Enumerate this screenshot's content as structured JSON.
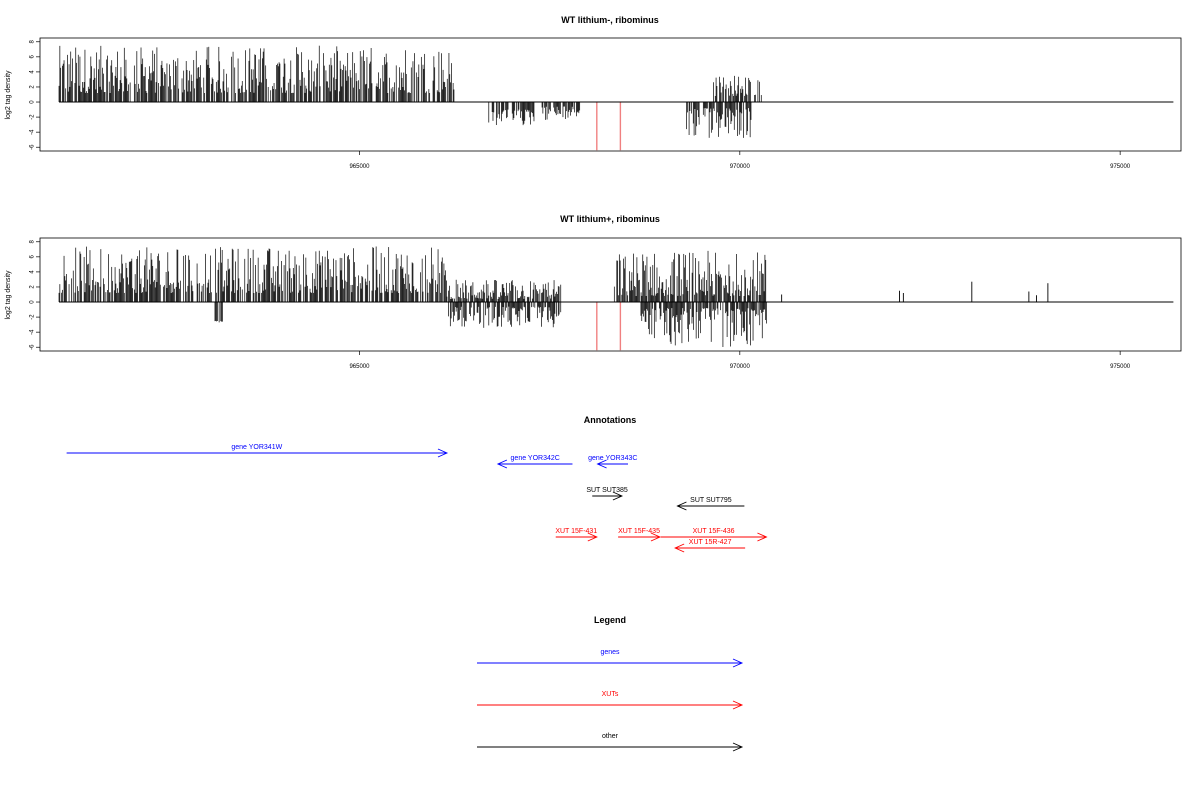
{
  "colors": {
    "gene": "#0000ff",
    "xut": "#ff0000",
    "other": "#000000",
    "track": "#000000",
    "marker": "#f08080"
  },
  "chart_data": [
    {
      "type": "bar",
      "title": "WT lithium-, ribominus",
      "ylabel": "log2 tag density",
      "xlim": [
        960800,
        975800
      ],
      "ylim": [
        -6.5,
        8.5
      ],
      "yticks": [
        8,
        6,
        4,
        2,
        0,
        -2,
        -4,
        -6
      ],
      "xticks": [
        965000,
        970000,
        975000
      ],
      "regions": [
        {
          "from": 961050,
          "to": 966250,
          "sign": 1,
          "min": 1.2,
          "max": 7.5
        },
        {
          "from": 966700,
          "to": 967300,
          "sign": -1,
          "min": 1.0,
          "max": 3.2
        },
        {
          "from": 967400,
          "to": 967900,
          "sign": -1,
          "min": 0.6,
          "max": 2.5
        },
        {
          "from": 969300,
          "to": 970150,
          "sign": -1,
          "min": 0.8,
          "max": 5.0
        },
        {
          "from": 969600,
          "to": 970300,
          "sign": 1,
          "min": 0.8,
          "max": 3.6
        }
      ],
      "markers": [
        968120,
        968430
      ]
    },
    {
      "type": "bar",
      "title": "WT lithium+, ribominus",
      "ylabel": "log2 tag density",
      "xlim": [
        960800,
        975800
      ],
      "ylim": [
        -6.5,
        8.5
      ],
      "yticks": [
        8,
        6,
        4,
        2,
        0,
        -2,
        -4,
        -6
      ],
      "xticks": [
        965000,
        970000,
        975000
      ],
      "regions": [
        {
          "from": 961050,
          "to": 966150,
          "sign": 1,
          "min": 1.2,
          "max": 7.4
        },
        {
          "from": 963100,
          "to": 963200,
          "sign": -1,
          "min": 2.5,
          "max": 2.8
        },
        {
          "from": 966150,
          "to": 967650,
          "sign": -1,
          "min": 0.6,
          "max": 3.5
        },
        {
          "from": 966150,
          "to": 967650,
          "sign": 1,
          "min": 0.4,
          "max": 3.0
        },
        {
          "from": 968350,
          "to": 970350,
          "sign": 1,
          "min": 0.8,
          "max": 6.8
        },
        {
          "from": 968700,
          "to": 970350,
          "sign": -1,
          "min": 0.8,
          "max": 6.0
        }
      ],
      "spikes": [
        {
          "x": 970550,
          "y": 1.0
        },
        {
          "x": 972100,
          "y": 1.5
        },
        {
          "x": 972150,
          "y": 1.2
        },
        {
          "x": 973050,
          "y": 2.7
        },
        {
          "x": 973800,
          "y": 1.4
        },
        {
          "x": 973900,
          "y": 0.9
        },
        {
          "x": 974050,
          "y": 2.5
        }
      ],
      "markers": [
        968120,
        968430
      ]
    }
  ],
  "annotations": {
    "title": "Annotations",
    "items": [
      {
        "label": "gene YOR341W",
        "kind": "gene",
        "start": 961150,
        "end": 966150,
        "dir": "forward",
        "row": 0
      },
      {
        "label": "gene YOR342C",
        "kind": "gene",
        "start": 966820,
        "end": 967800,
        "dir": "reverse",
        "row": 1
      },
      {
        "label": "gene YOR343C",
        "kind": "gene",
        "start": 968130,
        "end": 968530,
        "dir": "reverse",
        "row": 1
      },
      {
        "label": "SUT SUT385",
        "kind": "other",
        "start": 968060,
        "end": 968450,
        "dir": "forward",
        "row": 2
      },
      {
        "label": "SUT SUT795",
        "kind": "other",
        "start": 969180,
        "end": 970060,
        "dir": "reverse",
        "row": 3
      },
      {
        "label": "XUT 15F-431",
        "kind": "xut",
        "start": 967580,
        "end": 968120,
        "dir": "forward",
        "row": 4
      },
      {
        "label": "XUT 15F-435",
        "kind": "xut",
        "start": 968400,
        "end": 968950,
        "dir": "forward",
        "row": 4
      },
      {
        "label": "XUT 15F-436",
        "kind": "xut",
        "start": 968960,
        "end": 970350,
        "dir": "forward",
        "row": 4
      },
      {
        "label": "XUT 15R-427",
        "kind": "xut",
        "start": 969150,
        "end": 970070,
        "dir": "reverse",
        "row": 5
      }
    ]
  },
  "legend": {
    "title": "Legend",
    "items": [
      {
        "label": "genes",
        "kind": "gene"
      },
      {
        "label": "XUTs",
        "kind": "xut"
      },
      {
        "label": "other",
        "kind": "other"
      }
    ]
  }
}
